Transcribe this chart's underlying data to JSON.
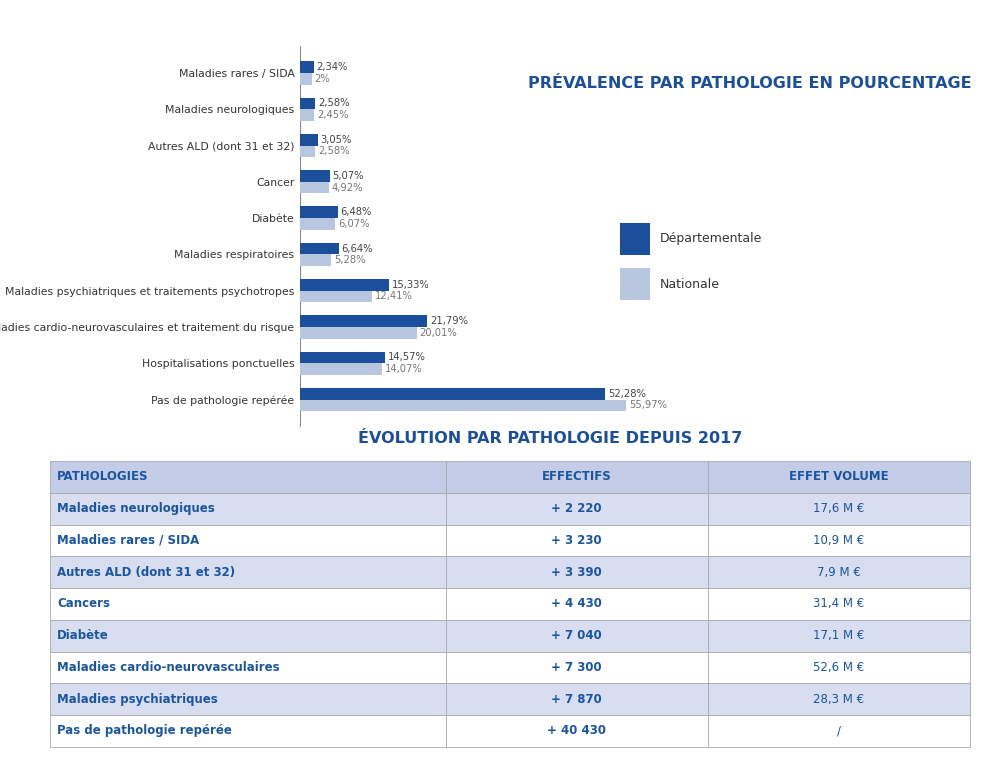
{
  "chart_title": "PRÉVALENCE PAR PATHOLOGIE EN POURCENTAGE",
  "chart_title2": "ÉVOLUTION PAR PATHOLOGIE DEPUIS 2017",
  "bar_categories": [
    "Pas de pathologie repérée",
    "Hospitalisations ponctuelles",
    "Maladies cardio-neurovasculaires et traitement du risque",
    "Maladies psychiatriques et traitements psychotropes",
    "Maladies respiratoires",
    "Diabète",
    "Cancer",
    "Autres ALD (dont 31 et 32)",
    "Maladies neurologiques",
    "Maladies rares / SIDA"
  ],
  "departementale": [
    52.28,
    14.57,
    21.79,
    15.33,
    6.64,
    6.48,
    5.07,
    3.05,
    2.58,
    2.34
  ],
  "nationale": [
    55.97,
    14.07,
    20.01,
    12.41,
    5.28,
    6.07,
    4.92,
    2.58,
    2.45,
    2.0
  ],
  "dep_labels": [
    "52,28%",
    "14,57%",
    "21,79%",
    "15,33%",
    "6,64%",
    "6,48%",
    "5,07%",
    "3,05%",
    "2,58%",
    "2,34%"
  ],
  "nat_labels": [
    "55,97%",
    "14,07%",
    "20,01%",
    "12,41%",
    "5,28%",
    "6,07%",
    "4,92%",
    "2,58%",
    "2,45%",
    "2%"
  ],
  "dep_color": "#1b4f9b",
  "nat_color": "#b8c6e0",
  "dep_label": "Départementale",
  "nat_label": "Nationale",
  "table_headers": [
    "PATHOLOGIES",
    "EFFECTIFS",
    "EFFET VOLUME"
  ],
  "table_rows": [
    [
      "Maladies neurologiques",
      "+ 2 220",
      "17,6 M €"
    ],
    [
      "Maladies rares / SIDA",
      "+ 3 230",
      "10,9 M €"
    ],
    [
      "Autres ALD (dont 31 et 32)",
      "+ 3 390",
      "7,9 M €"
    ],
    [
      "Cancers",
      "+ 4 430",
      "31,4 M €"
    ],
    [
      "Diabète",
      "+ 7 040",
      "17,1 M €"
    ],
    [
      "Maladies cardio-neurovasculaires",
      "+ 7 300",
      "52,6 M €"
    ],
    [
      "Maladies psychiatriques",
      "+ 7 870",
      "28,3 M €"
    ],
    [
      "Pas de pathologie repérée",
      "+ 40 430",
      "/"
    ]
  ],
  "bg_color": "#ffffff",
  "blue_text": "#1a56a0",
  "header_bg": "#c5cce8",
  "odd_bg": "#d8ddf0",
  "even_bg": "#ffffff",
  "border_col": "#aaaaaa"
}
